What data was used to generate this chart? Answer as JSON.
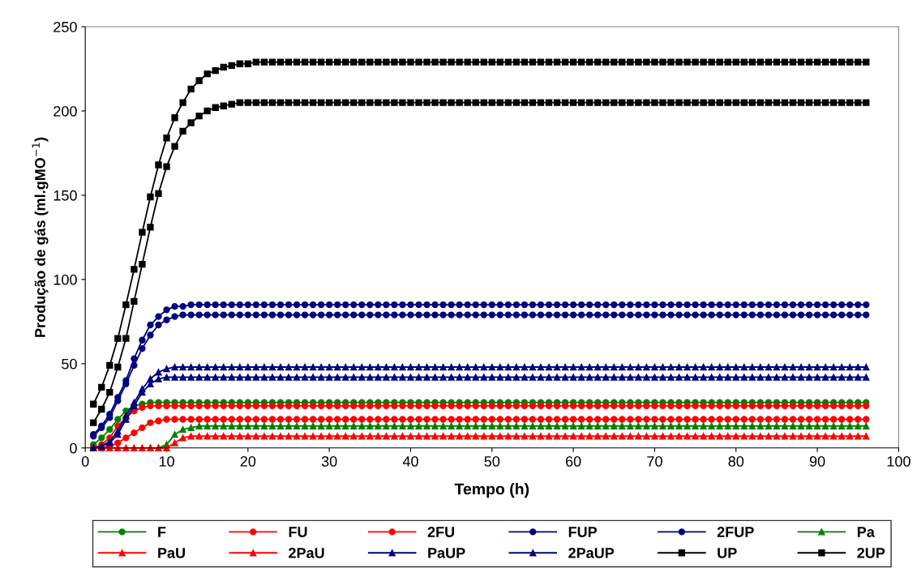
{
  "chart_data": {
    "type": "line",
    "xlabel": "Tempo (h)",
    "ylabel": "Produção de gás (ml.gMO$^{−1}$)",
    "xlim": [
      0,
      100
    ],
    "xticks": [
      0,
      10,
      20,
      30,
      40,
      50,
      60,
      70,
      80,
      90,
      100
    ],
    "ylim": [
      0,
      250
    ],
    "yticks": [
      0,
      50,
      100,
      150,
      200,
      250
    ],
    "grid": false,
    "legend": "bottom",
    "line_style": "solid",
    "x": [
      1,
      2,
      3,
      4,
      5,
      6,
      7,
      8,
      9,
      10,
      11,
      12,
      13,
      14,
      15,
      16,
      17,
      18,
      19,
      20,
      21,
      22,
      23,
      24,
      25,
      26,
      27,
      28,
      29,
      30,
      31,
      32,
      33,
      34,
      35,
      36,
      37,
      38,
      39,
      40,
      41,
      42,
      43,
      44,
      45,
      46,
      47,
      48,
      49,
      50,
      51,
      52,
      53,
      54,
      55,
      56,
      57,
      58,
      59,
      60,
      61,
      62,
      63,
      64,
      65,
      66,
      67,
      68,
      69,
      70,
      71,
      72,
      73,
      74,
      75,
      76,
      77,
      78,
      79,
      80,
      81,
      82,
      83,
      84,
      85,
      86,
      87,
      88,
      89,
      90,
      91,
      92,
      93,
      94,
      95,
      96
    ],
    "series": [
      {
        "name": "F",
        "color": "#008000",
        "marker": "circle",
        "values": [
          2,
          6,
          11,
          17,
          22,
          25,
          26,
          27,
          27,
          27,
          27,
          27,
          27,
          27,
          27,
          27,
          27,
          27,
          27,
          27,
          27,
          27,
          27,
          27,
          27,
          27,
          27,
          27,
          27,
          27,
          27,
          27,
          27,
          27,
          27,
          27,
          27,
          27,
          27,
          27,
          27,
          27,
          27,
          27,
          27,
          27,
          27,
          27,
          27,
          27,
          27,
          27,
          27,
          27,
          27,
          27,
          27,
          27,
          27,
          27,
          27,
          27,
          27,
          27,
          27,
          27,
          27,
          27,
          27,
          27,
          27,
          27,
          27,
          27,
          27,
          27,
          27,
          27,
          27,
          27,
          27,
          27,
          27,
          27,
          27,
          27,
          27,
          27,
          27,
          27,
          27,
          27,
          27,
          27,
          27,
          27
        ]
      },
      {
        "name": "FU",
        "color": "#ff0000",
        "marker": "circle",
        "values": [
          0,
          2,
          6,
          13,
          18,
          22,
          24,
          25,
          25,
          25,
          25,
          25,
          25,
          25,
          25,
          25,
          25,
          25,
          25,
          25,
          25,
          25,
          25,
          25,
          25,
          25,
          25,
          25,
          25,
          25,
          25,
          25,
          25,
          25,
          25,
          25,
          25,
          25,
          25,
          25,
          25,
          25,
          25,
          25,
          25,
          25,
          25,
          25,
          25,
          25,
          25,
          25,
          25,
          25,
          25,
          25,
          25,
          25,
          25,
          25,
          25,
          25,
          25,
          25,
          25,
          25,
          25,
          25,
          25,
          25,
          25,
          25,
          25,
          25,
          25,
          25,
          25,
          25,
          25,
          25,
          25,
          25,
          25,
          25,
          25,
          25,
          25,
          25,
          25,
          25,
          25,
          25,
          25,
          25,
          25,
          25
        ]
      },
      {
        "name": "2FU",
        "color": "#ff0000",
        "marker": "circle",
        "values": [
          0,
          0,
          1,
          3,
          6,
          9,
          12,
          15,
          16,
          17,
          17,
          17,
          17,
          17,
          17,
          17,
          17,
          17,
          17,
          17,
          17,
          17,
          17,
          17,
          17,
          17,
          17,
          17,
          17,
          17,
          17,
          17,
          17,
          17,
          17,
          17,
          17,
          17,
          17,
          17,
          17,
          17,
          17,
          17,
          17,
          17,
          17,
          17,
          17,
          17,
          17,
          17,
          17,
          17,
          17,
          17,
          17,
          17,
          17,
          17,
          17,
          17,
          17,
          17,
          17,
          17,
          17,
          17,
          17,
          17,
          17,
          17,
          17,
          17,
          17,
          17,
          17,
          17,
          17,
          17,
          17,
          17,
          17,
          17,
          17,
          17,
          17,
          17,
          17,
          17,
          17,
          17,
          17,
          17,
          17,
          17
        ]
      },
      {
        "name": "FUP",
        "color": "#000080",
        "marker": "circle",
        "values": [
          8,
          13,
          20,
          30,
          40,
          53,
          64,
          73,
          78,
          82,
          84,
          84,
          85,
          85,
          85,
          85,
          85,
          85,
          85,
          85,
          85,
          85,
          85,
          85,
          85,
          85,
          85,
          85,
          85,
          85,
          85,
          85,
          85,
          85,
          85,
          85,
          85,
          85,
          85,
          85,
          85,
          85,
          85,
          85,
          85,
          85,
          85,
          85,
          85,
          85,
          85,
          85,
          85,
          85,
          85,
          85,
          85,
          85,
          85,
          85,
          85,
          85,
          85,
          85,
          85,
          85,
          85,
          85,
          85,
          85,
          85,
          85,
          85,
          85,
          85,
          85,
          85,
          85,
          85,
          85,
          85,
          85,
          85,
          85,
          85,
          85,
          85,
          85,
          85,
          85,
          85,
          85,
          85,
          85,
          85,
          85
        ]
      },
      {
        "name": "2FUP",
        "color": "#000080",
        "marker": "circle",
        "values": [
          7,
          12,
          18,
          28,
          38,
          49,
          59,
          67,
          73,
          76,
          78,
          79,
          79,
          79,
          79,
          79,
          79,
          79,
          79,
          79,
          79,
          79,
          79,
          79,
          79,
          79,
          79,
          79,
          79,
          79,
          79,
          79,
          79,
          79,
          79,
          79,
          79,
          79,
          79,
          79,
          79,
          79,
          79,
          79,
          79,
          79,
          79,
          79,
          79,
          79,
          79,
          79,
          79,
          79,
          79,
          79,
          79,
          79,
          79,
          79,
          79,
          79,
          79,
          79,
          79,
          79,
          79,
          79,
          79,
          79,
          79,
          79,
          79,
          79,
          79,
          79,
          79,
          79,
          79,
          79,
          79,
          79,
          79,
          79,
          79,
          79,
          79,
          79,
          79,
          79,
          79,
          79,
          79,
          79,
          79,
          79
        ]
      },
      {
        "name": "Pa",
        "color": "#008000",
        "marker": "triangle",
        "values": [
          null,
          null,
          null,
          null,
          null,
          null,
          null,
          0,
          0,
          2,
          8,
          11,
          12,
          13,
          13,
          13,
          13,
          13,
          13,
          13,
          13,
          13,
          13,
          13,
          13,
          13,
          13,
          13,
          13,
          13,
          13,
          13,
          13,
          13,
          13,
          13,
          13,
          13,
          13,
          13,
          13,
          13,
          13,
          13,
          13,
          13,
          13,
          13,
          13,
          13,
          13,
          13,
          13,
          13,
          13,
          13,
          13,
          13,
          13,
          13,
          13,
          13,
          13,
          13,
          13,
          13,
          13,
          13,
          13,
          13,
          13,
          13,
          13,
          13,
          13,
          13,
          13,
          13,
          13,
          13,
          13,
          13,
          13,
          13,
          13,
          13,
          13,
          13,
          13,
          13,
          13,
          13,
          13,
          13,
          13,
          13
        ]
      },
      {
        "name": "PaU",
        "color": "#ff0000",
        "marker": "triangle",
        "values": [
          0,
          0,
          0,
          0,
          0,
          0,
          0,
          0,
          0,
          0,
          3,
          6,
          7,
          7,
          7,
          7,
          7,
          7,
          7,
          7,
          7,
          7,
          7,
          7,
          7,
          7,
          7,
          7,
          7,
          7,
          7,
          7,
          7,
          7,
          7,
          7,
          7,
          7,
          7,
          7,
          7,
          7,
          7,
          7,
          7,
          7,
          7,
          7,
          7,
          7,
          7,
          7,
          7,
          7,
          7,
          7,
          7,
          7,
          7,
          7,
          7,
          7,
          7,
          7,
          7,
          7,
          7,
          7,
          7,
          7,
          7,
          7,
          7,
          7,
          7,
          7,
          7,
          7,
          7,
          7,
          7,
          7,
          7,
          7,
          7,
          7,
          7,
          7,
          7,
          7,
          7,
          7,
          7,
          7,
          7,
          7
        ]
      },
      {
        "name": "2PaU",
        "color": "#ff0000",
        "marker": "triangle",
        "values": [
          null,
          null,
          null,
          null,
          null,
          null,
          null,
          null,
          null,
          null,
          null,
          null,
          null,
          null,
          null,
          null,
          null,
          null,
          null,
          null,
          null,
          null,
          null,
          null,
          null,
          null,
          null,
          null,
          null,
          null,
          null,
          null,
          null,
          null,
          null,
          null,
          null,
          null,
          null,
          null,
          null,
          null,
          null,
          null,
          null,
          null,
          null,
          null,
          null,
          null,
          null,
          null,
          null,
          null,
          null,
          null,
          null,
          null,
          null,
          null,
          null,
          null,
          null,
          null,
          null,
          null,
          null,
          null,
          null,
          null,
          null,
          null,
          null,
          null,
          null,
          null,
          null,
          null,
          null,
          null,
          null,
          null,
          null,
          null,
          null,
          null,
          null,
          null,
          null,
          null,
          null,
          null,
          null,
          null,
          null,
          null
        ]
      },
      {
        "name": "PaUP",
        "color": "#000080",
        "marker": "triangle",
        "values": [
          0,
          1,
          4,
          10,
          19,
          27,
          35,
          41,
          45,
          47,
          48,
          48,
          48,
          48,
          48,
          48,
          48,
          48,
          48,
          48,
          48,
          48,
          48,
          48,
          48,
          48,
          48,
          48,
          48,
          48,
          48,
          48,
          48,
          48,
          48,
          48,
          48,
          48,
          48,
          48,
          48,
          48,
          48,
          48,
          48,
          48,
          48,
          48,
          48,
          48,
          48,
          48,
          48,
          48,
          48,
          48,
          48,
          48,
          48,
          48,
          48,
          48,
          48,
          48,
          48,
          48,
          48,
          48,
          48,
          48,
          48,
          48,
          48,
          48,
          48,
          48,
          48,
          48,
          48,
          48,
          48,
          48,
          48,
          48,
          48,
          48,
          48,
          48,
          48,
          48,
          48,
          48,
          48,
          48,
          48,
          48
        ]
      },
      {
        "name": "2PaUP",
        "color": "#000080",
        "marker": "triangle",
        "values": [
          0,
          1,
          3,
          8,
          17,
          25,
          33,
          38,
          41,
          42,
          42,
          42,
          42,
          42,
          42,
          42,
          42,
          42,
          42,
          42,
          42,
          42,
          42,
          42,
          42,
          42,
          42,
          42,
          42,
          42,
          42,
          42,
          42,
          42,
          42,
          42,
          42,
          42,
          42,
          42,
          42,
          42,
          42,
          42,
          42,
          42,
          42,
          42,
          42,
          42,
          42,
          42,
          42,
          42,
          42,
          42,
          42,
          42,
          42,
          42,
          42,
          42,
          42,
          42,
          42,
          42,
          42,
          42,
          42,
          42,
          42,
          42,
          42,
          42,
          42,
          42,
          42,
          42,
          42,
          42,
          42,
          42,
          42,
          42,
          42,
          42,
          42,
          42,
          42,
          42,
          42,
          42,
          42,
          42,
          42,
          42
        ]
      },
      {
        "name": "UP",
        "color": "#000000",
        "marker": "square",
        "values": [
          26,
          36,
          49,
          65,
          85,
          106,
          128,
          149,
          168,
          184,
          196,
          205,
          213,
          218,
          222,
          224,
          226,
          227,
          228,
          228,
          229,
          229,
          229,
          229,
          229,
          229,
          229,
          229,
          229,
          229,
          229,
          229,
          229,
          229,
          229,
          229,
          229,
          229,
          229,
          229,
          229,
          229,
          229,
          229,
          229,
          229,
          229,
          229,
          229,
          229,
          229,
          229,
          229,
          229,
          229,
          229,
          229,
          229,
          229,
          229,
          229,
          229,
          229,
          229,
          229,
          229,
          229,
          229,
          229,
          229,
          229,
          229,
          229,
          229,
          229,
          229,
          229,
          229,
          229,
          229,
          229,
          229,
          229,
          229,
          229,
          229,
          229,
          229,
          229,
          229,
          229,
          229,
          229,
          229,
          229,
          229
        ]
      },
      {
        "name": "2UP",
        "color": "#000000",
        "marker": "square",
        "values": [
          15,
          23,
          33,
          48,
          65,
          87,
          109,
          131,
          151,
          167,
          179,
          188,
          193,
          197,
          200,
          202,
          203,
          204,
          205,
          205,
          205,
          205,
          205,
          205,
          205,
          205,
          205,
          205,
          205,
          205,
          205,
          205,
          205,
          205,
          205,
          205,
          205,
          205,
          205,
          205,
          205,
          205,
          205,
          205,
          205,
          205,
          205,
          205,
          205,
          205,
          205,
          205,
          205,
          205,
          205,
          205,
          205,
          205,
          205,
          205,
          205,
          205,
          205,
          205,
          205,
          205,
          205,
          205,
          205,
          205,
          205,
          205,
          205,
          205,
          205,
          205,
          205,
          205,
          205,
          205,
          205,
          205,
          205,
          205,
          205,
          205,
          205,
          205,
          205,
          205,
          205,
          205,
          205,
          205,
          205,
          205
        ]
      }
    ]
  }
}
